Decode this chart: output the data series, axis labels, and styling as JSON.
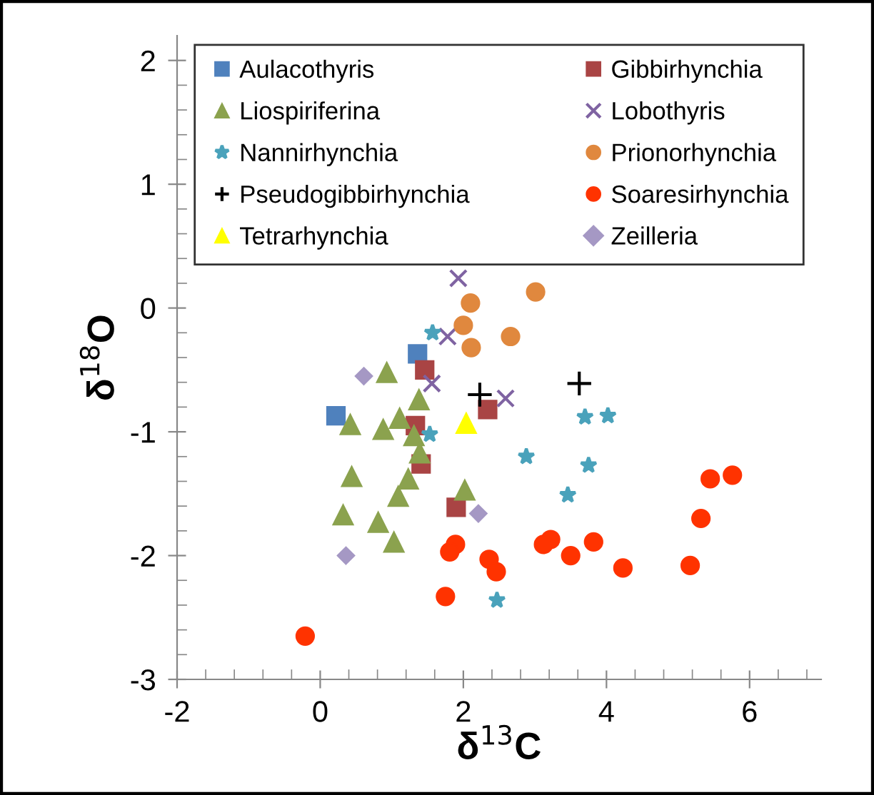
{
  "chart_data": {
    "type": "scatter",
    "xlabel": "δ$^{13}$C",
    "ylabel": "δ$^{18}$O",
    "xlim": [
      -2,
      7
    ],
    "ylim": [
      -3,
      2.2
    ],
    "xticks": [
      -2,
      {
        "value": -1.6,
        "label": null
      },
      {
        "value": -1.2,
        "label": null
      },
      {
        "value": -0.8,
        "label": null
      },
      {
        "value": -0.4,
        "label": null
      },
      0,
      {
        "value": 0.4,
        "label": null
      },
      {
        "value": 0.8,
        "label": null
      },
      {
        "value": 1.2,
        "label": null
      },
      {
        "value": 1.6,
        "label": null
      },
      2,
      {
        "value": 2.4,
        "label": null
      },
      {
        "value": 2.8,
        "label": null
      },
      {
        "value": 3.2,
        "label": null
      },
      {
        "value": 3.6,
        "label": null
      },
      4,
      {
        "value": 4.4,
        "label": null
      },
      {
        "value": 4.8,
        "label": null
      },
      {
        "value": 5.2,
        "label": null
      },
      {
        "value": 5.6,
        "label": null
      },
      6,
      {
        "value": 6.4,
        "label": null
      },
      {
        "value": 6.8,
        "label": null
      }
    ],
    "yticks": [
      -3,
      {
        "value": -2.8,
        "label": null
      },
      {
        "value": -2.6,
        "label": null
      },
      {
        "value": -2.4,
        "label": null
      },
      {
        "value": -2.2,
        "label": null
      },
      -2,
      {
        "value": -1.8,
        "label": null
      },
      {
        "value": -1.6,
        "label": null
      },
      {
        "value": -1.4,
        "label": null
      },
      {
        "value": -1.2,
        "label": null
      },
      -1,
      {
        "value": -0.8,
        "label": null
      },
      {
        "value": -0.6,
        "label": null
      },
      {
        "value": -0.4,
        "label": null
      },
      {
        "value": -0.2,
        "label": null
      },
      0,
      {
        "value": 0.2,
        "label": null
      },
      {
        "value": 0.4,
        "label": null
      },
      {
        "value": 0.6,
        "label": null
      },
      {
        "value": 0.8,
        "label": null
      },
      1,
      {
        "value": 1.2,
        "label": null
      },
      {
        "value": 1.4,
        "label": null
      },
      {
        "value": 1.6,
        "label": null
      },
      {
        "value": 1.8,
        "label": null
      },
      2
    ],
    "grid": false,
    "legend": "top",
    "series": [
      {
        "name": "Aulacothyris",
        "color": "#4f81bd",
        "marker": "square",
        "x": [
          1.36,
          0.22
        ],
        "values": [
          -0.37,
          -0.87
        ]
      },
      {
        "name": "Gibbirhynchia",
        "color": "#a94444",
        "marker": "square",
        "x": [
          1.46,
          2.34,
          1.33,
          1.39,
          1.41,
          1.9
        ],
        "values": [
          -0.5,
          -0.82,
          -0.95,
          null,
          -1.26,
          -1.61
        ]
      },
      {
        "name": "Liospiriferina",
        "color": "#8ba24e",
        "marker": "triangle",
        "x": [
          0.93,
          1.38,
          0.42,
          0.88,
          1.11,
          1.31,
          1.39,
          2.02,
          0.44,
          1.23,
          1.09,
          0.32,
          0.81,
          1.03
        ],
        "values": [
          -0.52,
          -0.74,
          -0.94,
          -0.98,
          -0.89,
          -1.03,
          -1.17,
          -1.47,
          -1.36,
          -1.38,
          -1.52,
          -1.67,
          -1.73,
          -1.89
        ]
      },
      {
        "name": "Lobothyris",
        "color": "#7f63a2",
        "marker": "cross",
        "x": [
          1.93,
          1.78,
          1.56,
          2.59
        ],
        "values": [
          0.24,
          -0.23,
          -0.61,
          -0.73
        ]
      },
      {
        "name": "Nannirhynchia",
        "color": "#4aa2bb",
        "marker": "star",
        "x": [
          1.57,
          3.7,
          4.02,
          1.53,
          2.88,
          3.75,
          3.46,
          2.47
        ],
        "values": [
          -0.2,
          -0.88,
          -0.87,
          -1.02,
          -1.2,
          -1.27,
          -1.51,
          -2.36
        ]
      },
      {
        "name": "Prionorhynchia",
        "color": "#e0883e",
        "marker": "circle",
        "x": [
          3.01,
          2.1,
          2.0,
          2.66,
          2.11
        ],
        "values": [
          0.13,
          0.04,
          -0.14,
          -0.23,
          -0.32
        ]
      },
      {
        "name": "Pseudogibbirhynchia",
        "color": "#000000",
        "marker": "plus",
        "x": [
          2.23,
          3.62
        ],
        "values": [
          -0.7,
          -0.61
        ]
      },
      {
        "name": "Soaresirhynchia",
        "color": "#ff3300",
        "marker": "circle",
        "x": [
          1.89,
          1.81,
          2.36,
          2.46,
          1.75,
          -0.21,
          3.22,
          3.12,
          3.5,
          3.82,
          4.23,
          5.17,
          5.32,
          5.45,
          5.76
        ],
        "values": [
          -1.91,
          -1.97,
          -2.03,
          -2.13,
          -2.33,
          -2.65,
          -1.87,
          -1.91,
          -2.0,
          -1.89,
          -2.1,
          -2.08,
          -1.7,
          -1.38,
          -1.35
        ]
      },
      {
        "name": "Tetrarhynchia",
        "color": "#ffff00",
        "marker": "triangle",
        "x": [
          2.04
        ],
        "values": [
          -0.93
        ]
      },
      {
        "name": "Zeilleria",
        "color": "#a598c4",
        "marker": "diamond",
        "x": [
          0.61,
          2.21,
          0.36
        ],
        "values": [
          -0.55,
          -1.66,
          -2.0
        ]
      }
    ]
  }
}
